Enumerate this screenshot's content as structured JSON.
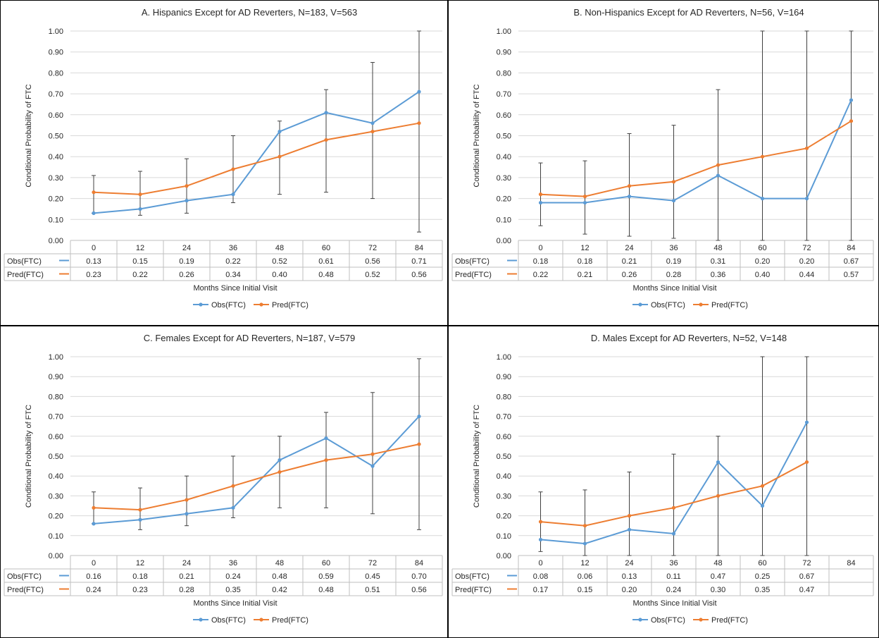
{
  "colors": {
    "obs": "#5B9BD5",
    "pred": "#ED7D31",
    "errorbar": "#404040",
    "gridline": "#D9D9D9",
    "table_border": "#BFBFBF",
    "panel_border": "#000000"
  },
  "chart_data": [
    {
      "type": "line",
      "title": "A. Hispanics Except for AD Reverters, N=183, V=563",
      "xlabel": "Months Since Initial Visit",
      "ylabel": "Conditional Probability of FTC",
      "ylim": [
        0,
        1
      ],
      "yticks": [
        "0.00",
        "0.10",
        "0.20",
        "0.30",
        "0.40",
        "0.50",
        "0.60",
        "0.70",
        "0.80",
        "0.90",
        "1.00"
      ],
      "categories": [
        "0",
        "12",
        "24",
        "36",
        "48",
        "60",
        "72",
        "84"
      ],
      "grid": "horizontal",
      "legend": "bottom-center",
      "series": [
        {
          "name": "Obs(FTC)",
          "values": [
            0.13,
            0.15,
            0.19,
            0.22,
            0.52,
            0.61,
            0.56,
            0.71
          ],
          "labels": [
            "0.13",
            "0.15",
            "0.19",
            "0.22",
            "0.52",
            "0.61",
            "0.56",
            "0.71"
          ],
          "err_low": [
            0.13,
            0.12,
            0.13,
            0.18,
            0.22,
            0.23,
            0.2,
            0.04
          ],
          "err_high": [
            0.31,
            0.33,
            0.39,
            0.5,
            0.57,
            0.72,
            0.85,
            1.0
          ]
        },
        {
          "name": "Pred(FTC)",
          "values": [
            0.23,
            0.22,
            0.26,
            0.34,
            0.4,
            0.48,
            0.52,
            0.56
          ],
          "labels": [
            "0.23",
            "0.22",
            "0.26",
            "0.34",
            "0.40",
            "0.48",
            "0.52",
            "0.56"
          ]
        }
      ]
    },
    {
      "type": "line",
      "title": "B. Non-Hispanics Except for AD Reverters, N=56, V=164",
      "xlabel": "Months Since Initial Visit",
      "ylabel": "Conditional Probability of FTC",
      "ylim": [
        0,
        1
      ],
      "yticks": [
        "0.00",
        "0.10",
        "0.20",
        "0.30",
        "0.40",
        "0.50",
        "0.60",
        "0.70",
        "0.80",
        "0.90",
        "1.00"
      ],
      "categories": [
        "0",
        "12",
        "24",
        "36",
        "48",
        "60",
        "72",
        "84"
      ],
      "grid": "horizontal",
      "legend": "bottom-center",
      "series": [
        {
          "name": "Obs(FTC)",
          "values": [
            0.18,
            0.18,
            0.21,
            0.19,
            0.31,
            0.2,
            0.2,
            0.67
          ],
          "labels": [
            "0.18",
            "0.18",
            "0.21",
            "0.19",
            "0.31",
            "0.20",
            "0.20",
            "0.67"
          ],
          "err_low": [
            0.07,
            0.03,
            0.02,
            0.01,
            0.0,
            0.0,
            0.0,
            0.0
          ],
          "err_high": [
            0.37,
            0.38,
            0.51,
            0.55,
            0.72,
            1.0,
            1.0,
            1.0
          ]
        },
        {
          "name": "Pred(FTC)",
          "values": [
            0.22,
            0.21,
            0.26,
            0.28,
            0.36,
            0.4,
            0.44,
            0.57
          ],
          "labels": [
            "0.22",
            "0.21",
            "0.26",
            "0.28",
            "0.36",
            "0.40",
            "0.44",
            "0.57"
          ]
        }
      ]
    },
    {
      "type": "line",
      "title": "C. Females Except for AD Reverters, N=187, V=579",
      "xlabel": "Months Since Initial Visit",
      "ylabel": "Conditional Probability of FTC",
      "ylim": [
        0,
        1
      ],
      "yticks": [
        "0.00",
        "0.10",
        "0.20",
        "0.30",
        "0.40",
        "0.50",
        "0.60",
        "0.70",
        "0.80",
        "0.90",
        "1.00"
      ],
      "categories": [
        "0",
        "12",
        "24",
        "36",
        "48",
        "60",
        "72",
        "84"
      ],
      "grid": "horizontal",
      "legend": "bottom-center",
      "series": [
        {
          "name": "Obs(FTC)",
          "values": [
            0.16,
            0.18,
            0.21,
            0.24,
            0.48,
            0.59,
            0.45,
            0.7
          ],
          "labels": [
            "0.16",
            "0.18",
            "0.21",
            "0.24",
            "0.48",
            "0.59",
            "0.45",
            "0.70"
          ],
          "err_low": [
            0.16,
            0.13,
            0.15,
            0.19,
            0.24,
            0.24,
            0.21,
            0.13
          ],
          "err_high": [
            0.32,
            0.34,
            0.4,
            0.5,
            0.6,
            0.72,
            0.82,
            0.99
          ]
        },
        {
          "name": "Pred(FTC)",
          "values": [
            0.24,
            0.23,
            0.28,
            0.35,
            0.42,
            0.48,
            0.51,
            0.56
          ],
          "labels": [
            "0.24",
            "0.23",
            "0.28",
            "0.35",
            "0.42",
            "0.48",
            "0.51",
            "0.56"
          ]
        }
      ]
    },
    {
      "type": "line",
      "title": "D. Males Except for AD Reverters, N=52, V=148",
      "xlabel": "Months Since Initial Visit",
      "ylabel": "Conditional Probability of FTC",
      "ylim": [
        0,
        1
      ],
      "yticks": [
        "0.00",
        "0.10",
        "0.20",
        "0.30",
        "0.40",
        "0.50",
        "0.60",
        "0.70",
        "0.80",
        "0.90",
        "1.00"
      ],
      "categories": [
        "0",
        "12",
        "24",
        "36",
        "48",
        "60",
        "72",
        "84"
      ],
      "grid": "horizontal",
      "legend": "bottom-center",
      "series": [
        {
          "name": "Obs(FTC)",
          "values": [
            0.08,
            0.06,
            0.13,
            0.11,
            0.47,
            0.25,
            0.67,
            null
          ],
          "labels": [
            "0.08",
            "0.06",
            "0.13",
            "0.11",
            "0.47",
            "0.25",
            "0.67",
            ""
          ],
          "err_low": [
            0.02,
            0.0,
            0.0,
            0.0,
            0.0,
            0.0,
            0.0,
            null
          ],
          "err_high": [
            0.32,
            0.33,
            0.42,
            0.51,
            0.6,
            1.0,
            1.0,
            null
          ]
        },
        {
          "name": "Pred(FTC)",
          "values": [
            0.17,
            0.15,
            0.2,
            0.24,
            0.3,
            0.35,
            0.47,
            null
          ],
          "labels": [
            "0.17",
            "0.15",
            "0.20",
            "0.24",
            "0.30",
            "0.35",
            "0.47",
            ""
          ]
        }
      ]
    }
  ]
}
